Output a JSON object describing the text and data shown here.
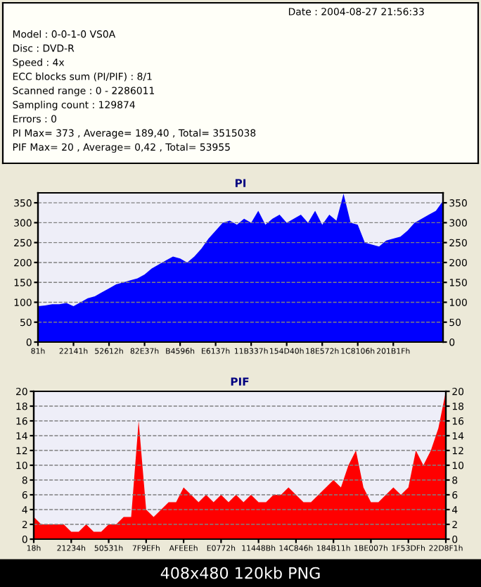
{
  "chart_data": [
    {
      "type": "other",
      "annotations": [
        "Date : 2004-08-27 21:56:33",
        "Model : 0-0-1-0 VS0A",
        "Disc : DVD-R",
        "Speed : 4x",
        "ECC blocks sum (PI/PIF) : 8/1",
        "Scanned range : 0 - 2286011",
        "Sampling count : 129874",
        "Errors : 0",
        "PI Max= 373 , Average= 189,40 , Total= 3515038",
        "PIF Max= 20 , Average= 0,42 , Total= 53955"
      ]
    },
    {
      "type": "area",
      "title": "PI",
      "grid": "y",
      "line_style": "dashed",
      "categories": [
        "81h",
        null,
        null,
        null,
        null,
        "22141h",
        null,
        null,
        null,
        null,
        "52612h",
        null,
        null,
        null,
        null,
        "82E37h",
        null,
        null,
        null,
        null,
        "B4596h",
        null,
        null,
        null,
        null,
        "E6137h",
        null,
        null,
        null,
        null,
        "11B337h",
        null,
        null,
        null,
        null,
        "154D40h",
        null,
        null,
        null,
        null,
        "18E572h",
        null,
        null,
        null,
        null,
        "1C8106h",
        null,
        null,
        null,
        null,
        "201B1Fh",
        null,
        null,
        null,
        null,
        null,
        null,
        null
      ],
      "series": [
        {
          "color": "#0000ff",
          "values": [
            90,
            92,
            95,
            95,
            98,
            90,
            100,
            110,
            115,
            125,
            135,
            145,
            150,
            155,
            160,
            170,
            185,
            195,
            205,
            215,
            210,
            200,
            215,
            235,
            260,
            280,
            300,
            305,
            295,
            310,
            300,
            330,
            295,
            310,
            320,
            300,
            310,
            320,
            300,
            330,
            295,
            320,
            305,
            373,
            300,
            295,
            250,
            245,
            240,
            255,
            260,
            265,
            280,
            300,
            310,
            320,
            330,
            355
          ]
        }
      ],
      "ylim": [
        0,
        375
      ],
      "yticks": [
        0,
        50,
        100,
        150,
        200,
        250,
        300,
        350
      ],
      "y2lim": [
        0,
        375
      ],
      "y2ticks": [
        0,
        50,
        100,
        150,
        200,
        250,
        300,
        350
      ]
    },
    {
      "type": "area",
      "title": "PIF",
      "grid": "y",
      "line_style": "dashed",
      "categories": [
        "18h",
        null,
        null,
        null,
        null,
        "21234h",
        null,
        null,
        null,
        null,
        "50531h",
        null,
        null,
        null,
        null,
        "7F9EFh",
        null,
        null,
        null,
        null,
        "AFEEEh",
        null,
        null,
        null,
        null,
        "E0772h",
        null,
        null,
        null,
        null,
        "11448Bh",
        null,
        null,
        null,
        null,
        "14C846h",
        null,
        null,
        null,
        null,
        "184B11h",
        null,
        null,
        null,
        null,
        "1BE007h",
        null,
        null,
        null,
        null,
        "1F53DFh",
        null,
        null,
        null,
        null,
        "22D8F1h"
      ],
      "series": [
        {
          "color": "#ff0000",
          "values": [
            3,
            2,
            2,
            2,
            2,
            1,
            1,
            2,
            1,
            1,
            2,
            2,
            3,
            3,
            16,
            4,
            3,
            4,
            5,
            5,
            7,
            6,
            5,
            6,
            5,
            6,
            5,
            6,
            5,
            6,
            5,
            5,
            6,
            6,
            7,
            6,
            5,
            5,
            6,
            7,
            8,
            7,
            10,
            12,
            7,
            5,
            5,
            6,
            7,
            6,
            7,
            12,
            10,
            12,
            15,
            20
          ]
        }
      ],
      "ylim": [
        0,
        20
      ],
      "yticks": [
        0,
        2,
        4,
        6,
        8,
        10,
        12,
        14,
        16,
        18,
        20
      ],
      "y2lim": [
        0,
        20
      ],
      "y2ticks": [
        0,
        2,
        4,
        6,
        8,
        10,
        12,
        14,
        16,
        18,
        20
      ],
      "annotations": [
        "408x480 120kb PNG"
      ]
    }
  ]
}
